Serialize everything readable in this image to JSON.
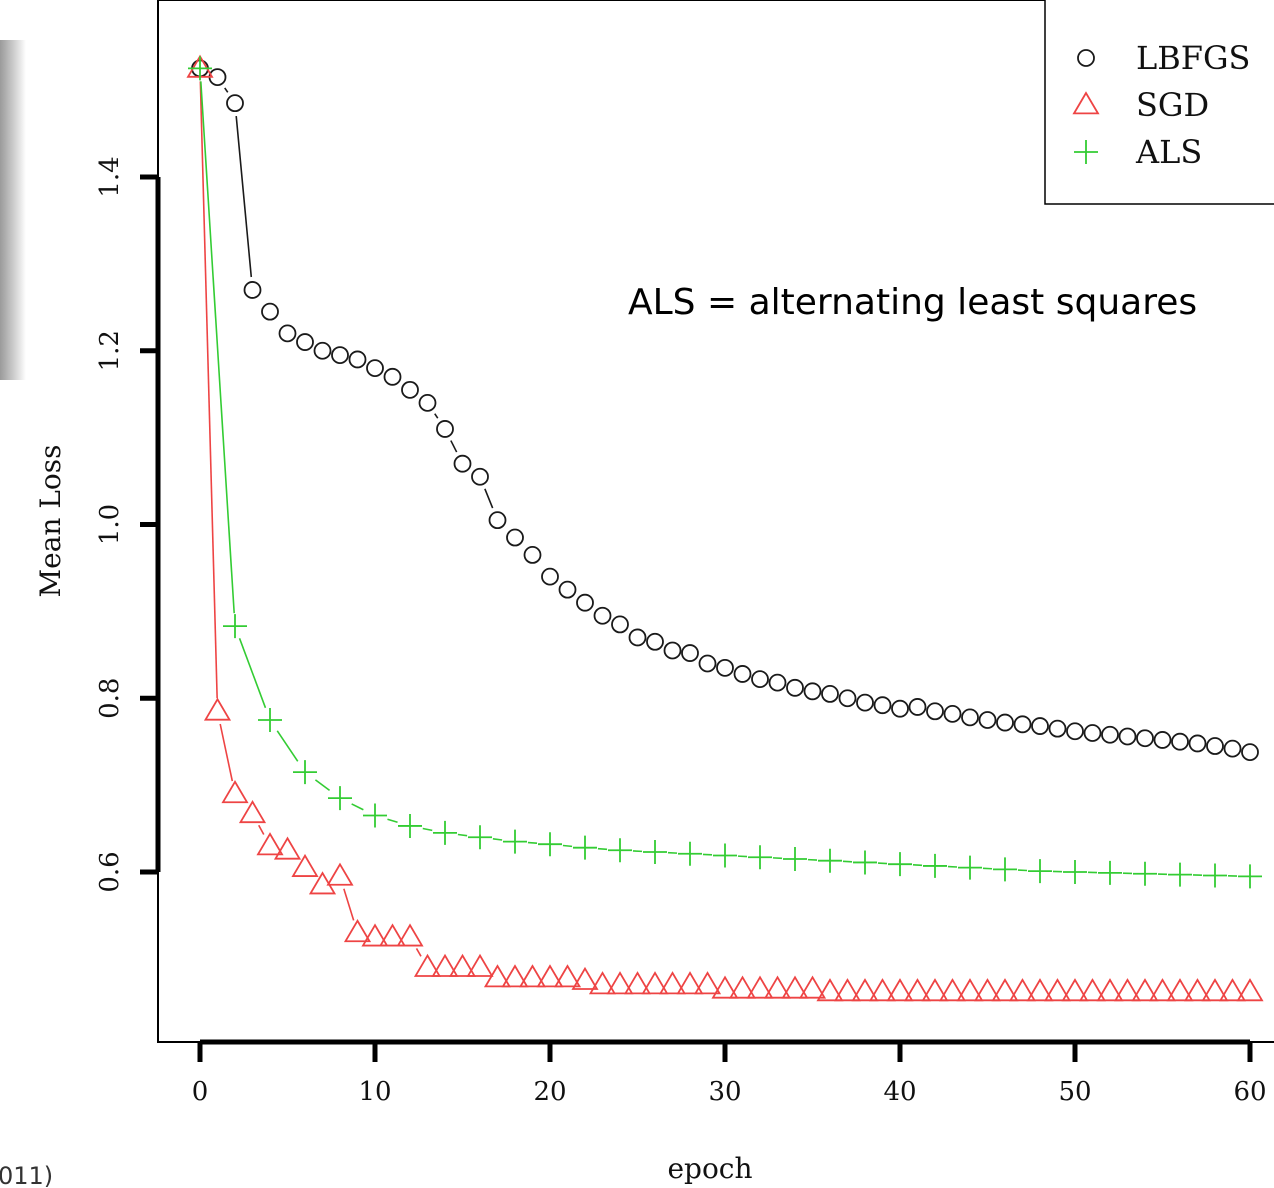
{
  "colors": {
    "LBFGS": "#1a1a1a",
    "SGD": "#ee4444",
    "ALS": "#33cc33",
    "axis": "#000000"
  },
  "chart_data": {
    "type": "scatter",
    "title": "",
    "xlabel": "epoch",
    "ylabel": "Mean Loss",
    "xlim": [
      -2.4,
      61
    ],
    "ylim": [
      0.41,
      1.6
    ],
    "xticks": [
      0,
      10,
      20,
      30,
      40,
      50,
      60
    ],
    "yticks": [
      0.6,
      0.8,
      1.0,
      1.2,
      1.4
    ],
    "xtick_labels": [
      "0",
      "10",
      "20",
      "30",
      "40",
      "50",
      "60"
    ],
    "ytick_labels": [
      "0.6",
      "0.8",
      "1.0",
      "1.2",
      "1.4"
    ],
    "grid": false,
    "legend_position": "top-right",
    "annotation": "ALS = alternating least squares",
    "corner_text": "011)",
    "x": [
      0,
      1,
      2,
      3,
      4,
      5,
      6,
      7,
      8,
      9,
      10,
      11,
      12,
      13,
      14,
      15,
      16,
      17,
      18,
      19,
      20,
      21,
      22,
      23,
      24,
      25,
      26,
      27,
      28,
      29,
      30,
      31,
      32,
      33,
      34,
      35,
      36,
      37,
      38,
      39,
      40,
      41,
      42,
      43,
      44,
      45,
      46,
      47,
      48,
      49,
      50,
      51,
      52,
      53,
      54,
      55,
      56,
      57,
      58,
      59,
      60
    ],
    "series": [
      {
        "name": "LBFGS",
        "marker": "circle",
        "values": [
          1.525,
          1.515,
          1.485,
          1.27,
          1.245,
          1.22,
          1.21,
          1.2,
          1.195,
          1.19,
          1.18,
          1.17,
          1.155,
          1.14,
          1.11,
          1.07,
          1.055,
          1.005,
          0.985,
          0.965,
          0.94,
          0.925,
          0.91,
          0.895,
          0.885,
          0.87,
          0.865,
          0.855,
          0.852,
          0.84,
          0.835,
          0.828,
          0.822,
          0.818,
          0.812,
          0.808,
          0.805,
          0.8,
          0.795,
          0.792,
          0.788,
          0.79,
          0.785,
          0.782,
          0.778,
          0.775,
          0.772,
          0.77,
          0.768,
          0.765,
          0.762,
          0.76,
          0.758,
          0.756,
          0.754,
          0.752,
          0.75,
          0.748,
          0.745,
          0.742,
          0.738
        ]
      },
      {
        "name": "SGD",
        "marker": "triangle",
        "values": [
          1.525,
          0.785,
          0.69,
          0.667,
          0.63,
          0.625,
          0.605,
          0.585,
          0.595,
          0.53,
          0.525,
          0.525,
          0.525,
          0.49,
          0.49,
          0.49,
          0.49,
          0.478,
          0.478,
          0.478,
          0.478,
          0.478,
          0.475,
          0.47,
          0.47,
          0.47,
          0.47,
          0.47,
          0.47,
          0.47,
          0.465,
          0.465,
          0.465,
          0.465,
          0.465,
          0.465,
          0.462,
          0.462,
          0.462,
          0.462,
          0.462,
          0.462,
          0.462,
          0.462,
          0.462,
          0.462,
          0.462,
          0.462,
          0.462,
          0.462,
          0.462,
          0.462,
          0.462,
          0.462,
          0.462,
          0.462,
          0.462,
          0.462,
          0.462,
          0.462,
          0.462
        ]
      },
      {
        "name": "ALS",
        "marker": "plus",
        "values": [
          1.525,
          null,
          0.883,
          null,
          0.775,
          null,
          0.715,
          null,
          0.685,
          null,
          0.665,
          null,
          0.653,
          null,
          0.645,
          null,
          0.64,
          null,
          0.635,
          null,
          0.632,
          null,
          0.628,
          null,
          0.625,
          null,
          0.623,
          null,
          0.621,
          null,
          0.619,
          null,
          0.617,
          null,
          0.615,
          null,
          0.613,
          null,
          0.611,
          null,
          0.609,
          null,
          0.607,
          null,
          0.605,
          null,
          0.603,
          null,
          0.601,
          null,
          0.6,
          null,
          0.599,
          null,
          0.598,
          null,
          0.597,
          null,
          0.596,
          null,
          0.595
        ]
      }
    ]
  }
}
